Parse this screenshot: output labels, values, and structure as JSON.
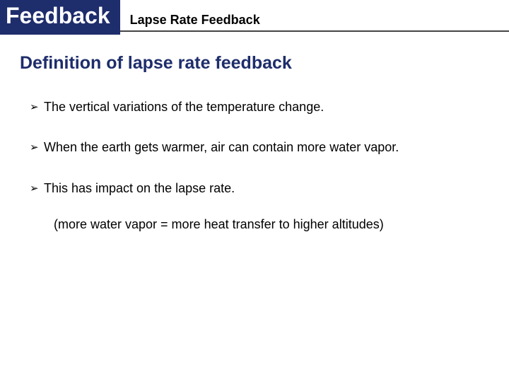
{
  "colors": {
    "badge_bg": "#1e2d6b",
    "badge_text": "#ffffff",
    "rule": "#444444",
    "section_title": "#1e2d6b",
    "body_text": "#000000",
    "background": "#ffffff"
  },
  "typography": {
    "badge_fontsize": 32,
    "subtitle_fontsize": 18,
    "section_title_fontsize": 25,
    "body_fontsize": 18,
    "badge_weight": 700,
    "subtitle_weight": 700,
    "section_title_weight": 700
  },
  "header": {
    "badge": "Feedback",
    "subtitle": "Lapse Rate Feedback"
  },
  "section": {
    "title": "Definition of lapse rate feedback"
  },
  "bullets": {
    "marker": "➢",
    "items": [
      "The vertical variations of the temperature change.",
      "When the earth gets warmer, air can contain more water vapor.",
      "This has impact on the lapse rate."
    ],
    "sub_note": "(more water vapor = more heat transfer to higher altitudes)"
  }
}
